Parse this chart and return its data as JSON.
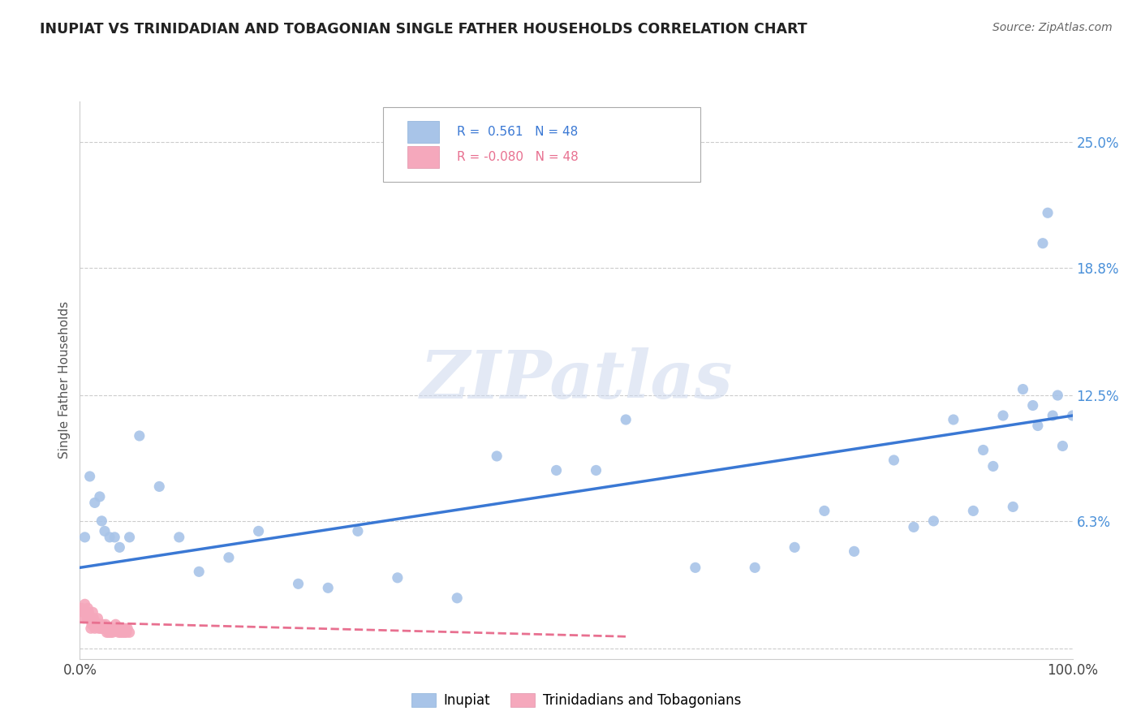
{
  "title": "INUPIAT VS TRINIDADIAN AND TOBAGONIAN SINGLE FATHER HOUSEHOLDS CORRELATION CHART",
  "source": "Source: ZipAtlas.com",
  "ylabel": "Single Father Households",
  "xlim": [
    0.0,
    1.0
  ],
  "ylim": [
    -0.005,
    0.27
  ],
  "xticklabels": [
    "0.0%",
    "100.0%"
  ],
  "ytick_vals": [
    0.0,
    0.063,
    0.125,
    0.188,
    0.25
  ],
  "yticklabels": [
    "",
    "6.3%",
    "12.5%",
    "18.8%",
    "25.0%"
  ],
  "inupiat_color": "#a8c4e8",
  "trinidadian_color": "#f5a8bc",
  "inupiat_line_color": "#3a78d4",
  "trinidadian_line_color": "#e87090",
  "watermark": "ZIPatlas",
  "inupiat_x": [
    0.005,
    0.01,
    0.015,
    0.02,
    0.022,
    0.025,
    0.03,
    0.035,
    0.04,
    0.05,
    0.06,
    0.08,
    0.1,
    0.12,
    0.15,
    0.18,
    0.22,
    0.25,
    0.28,
    0.32,
    0.38,
    0.42,
    0.48,
    0.52,
    0.55,
    0.62,
    0.68,
    0.72,
    0.75,
    0.78,
    0.82,
    0.84,
    0.86,
    0.88,
    0.9,
    0.91,
    0.92,
    0.93,
    0.94,
    0.95,
    0.96,
    0.965,
    0.97,
    0.975,
    0.98,
    0.985,
    0.99,
    1.0
  ],
  "inupiat_y": [
    0.055,
    0.085,
    0.072,
    0.075,
    0.063,
    0.058,
    0.055,
    0.055,
    0.05,
    0.055,
    0.105,
    0.08,
    0.055,
    0.038,
    0.045,
    0.058,
    0.032,
    0.03,
    0.058,
    0.035,
    0.025,
    0.095,
    0.088,
    0.088,
    0.113,
    0.04,
    0.04,
    0.05,
    0.068,
    0.048,
    0.093,
    0.06,
    0.063,
    0.113,
    0.068,
    0.098,
    0.09,
    0.115,
    0.07,
    0.128,
    0.12,
    0.11,
    0.2,
    0.215,
    0.115,
    0.125,
    0.1,
    0.115
  ],
  "trinidadian_x": [
    0.002,
    0.003,
    0.004,
    0.005,
    0.006,
    0.007,
    0.008,
    0.009,
    0.01,
    0.011,
    0.012,
    0.013,
    0.014,
    0.015,
    0.016,
    0.017,
    0.018,
    0.019,
    0.02,
    0.021,
    0.022,
    0.023,
    0.024,
    0.025,
    0.026,
    0.027,
    0.028,
    0.029,
    0.03,
    0.031,
    0.032,
    0.033,
    0.034,
    0.035,
    0.036,
    0.037,
    0.038,
    0.039,
    0.04,
    0.041,
    0.042,
    0.043,
    0.044,
    0.045,
    0.046,
    0.047,
    0.048,
    0.05
  ],
  "trinidadian_y": [
    0.02,
    0.018,
    0.015,
    0.022,
    0.018,
    0.015,
    0.02,
    0.018,
    0.015,
    0.01,
    0.012,
    0.018,
    0.015,
    0.01,
    0.013,
    0.012,
    0.015,
    0.01,
    0.012,
    0.01,
    0.01,
    0.012,
    0.01,
    0.01,
    0.012,
    0.008,
    0.01,
    0.008,
    0.01,
    0.008,
    0.01,
    0.008,
    0.01,
    0.01,
    0.012,
    0.01,
    0.01,
    0.008,
    0.01,
    0.008,
    0.01,
    0.008,
    0.01,
    0.008,
    0.01,
    0.008,
    0.01,
    0.008
  ],
  "inupiat_line_x": [
    0.0,
    1.0
  ],
  "inupiat_line_y": [
    0.04,
    0.115
  ],
  "trinidadian_line_x": [
    0.0,
    0.55
  ],
  "trinidadian_line_y": [
    0.013,
    0.006
  ]
}
